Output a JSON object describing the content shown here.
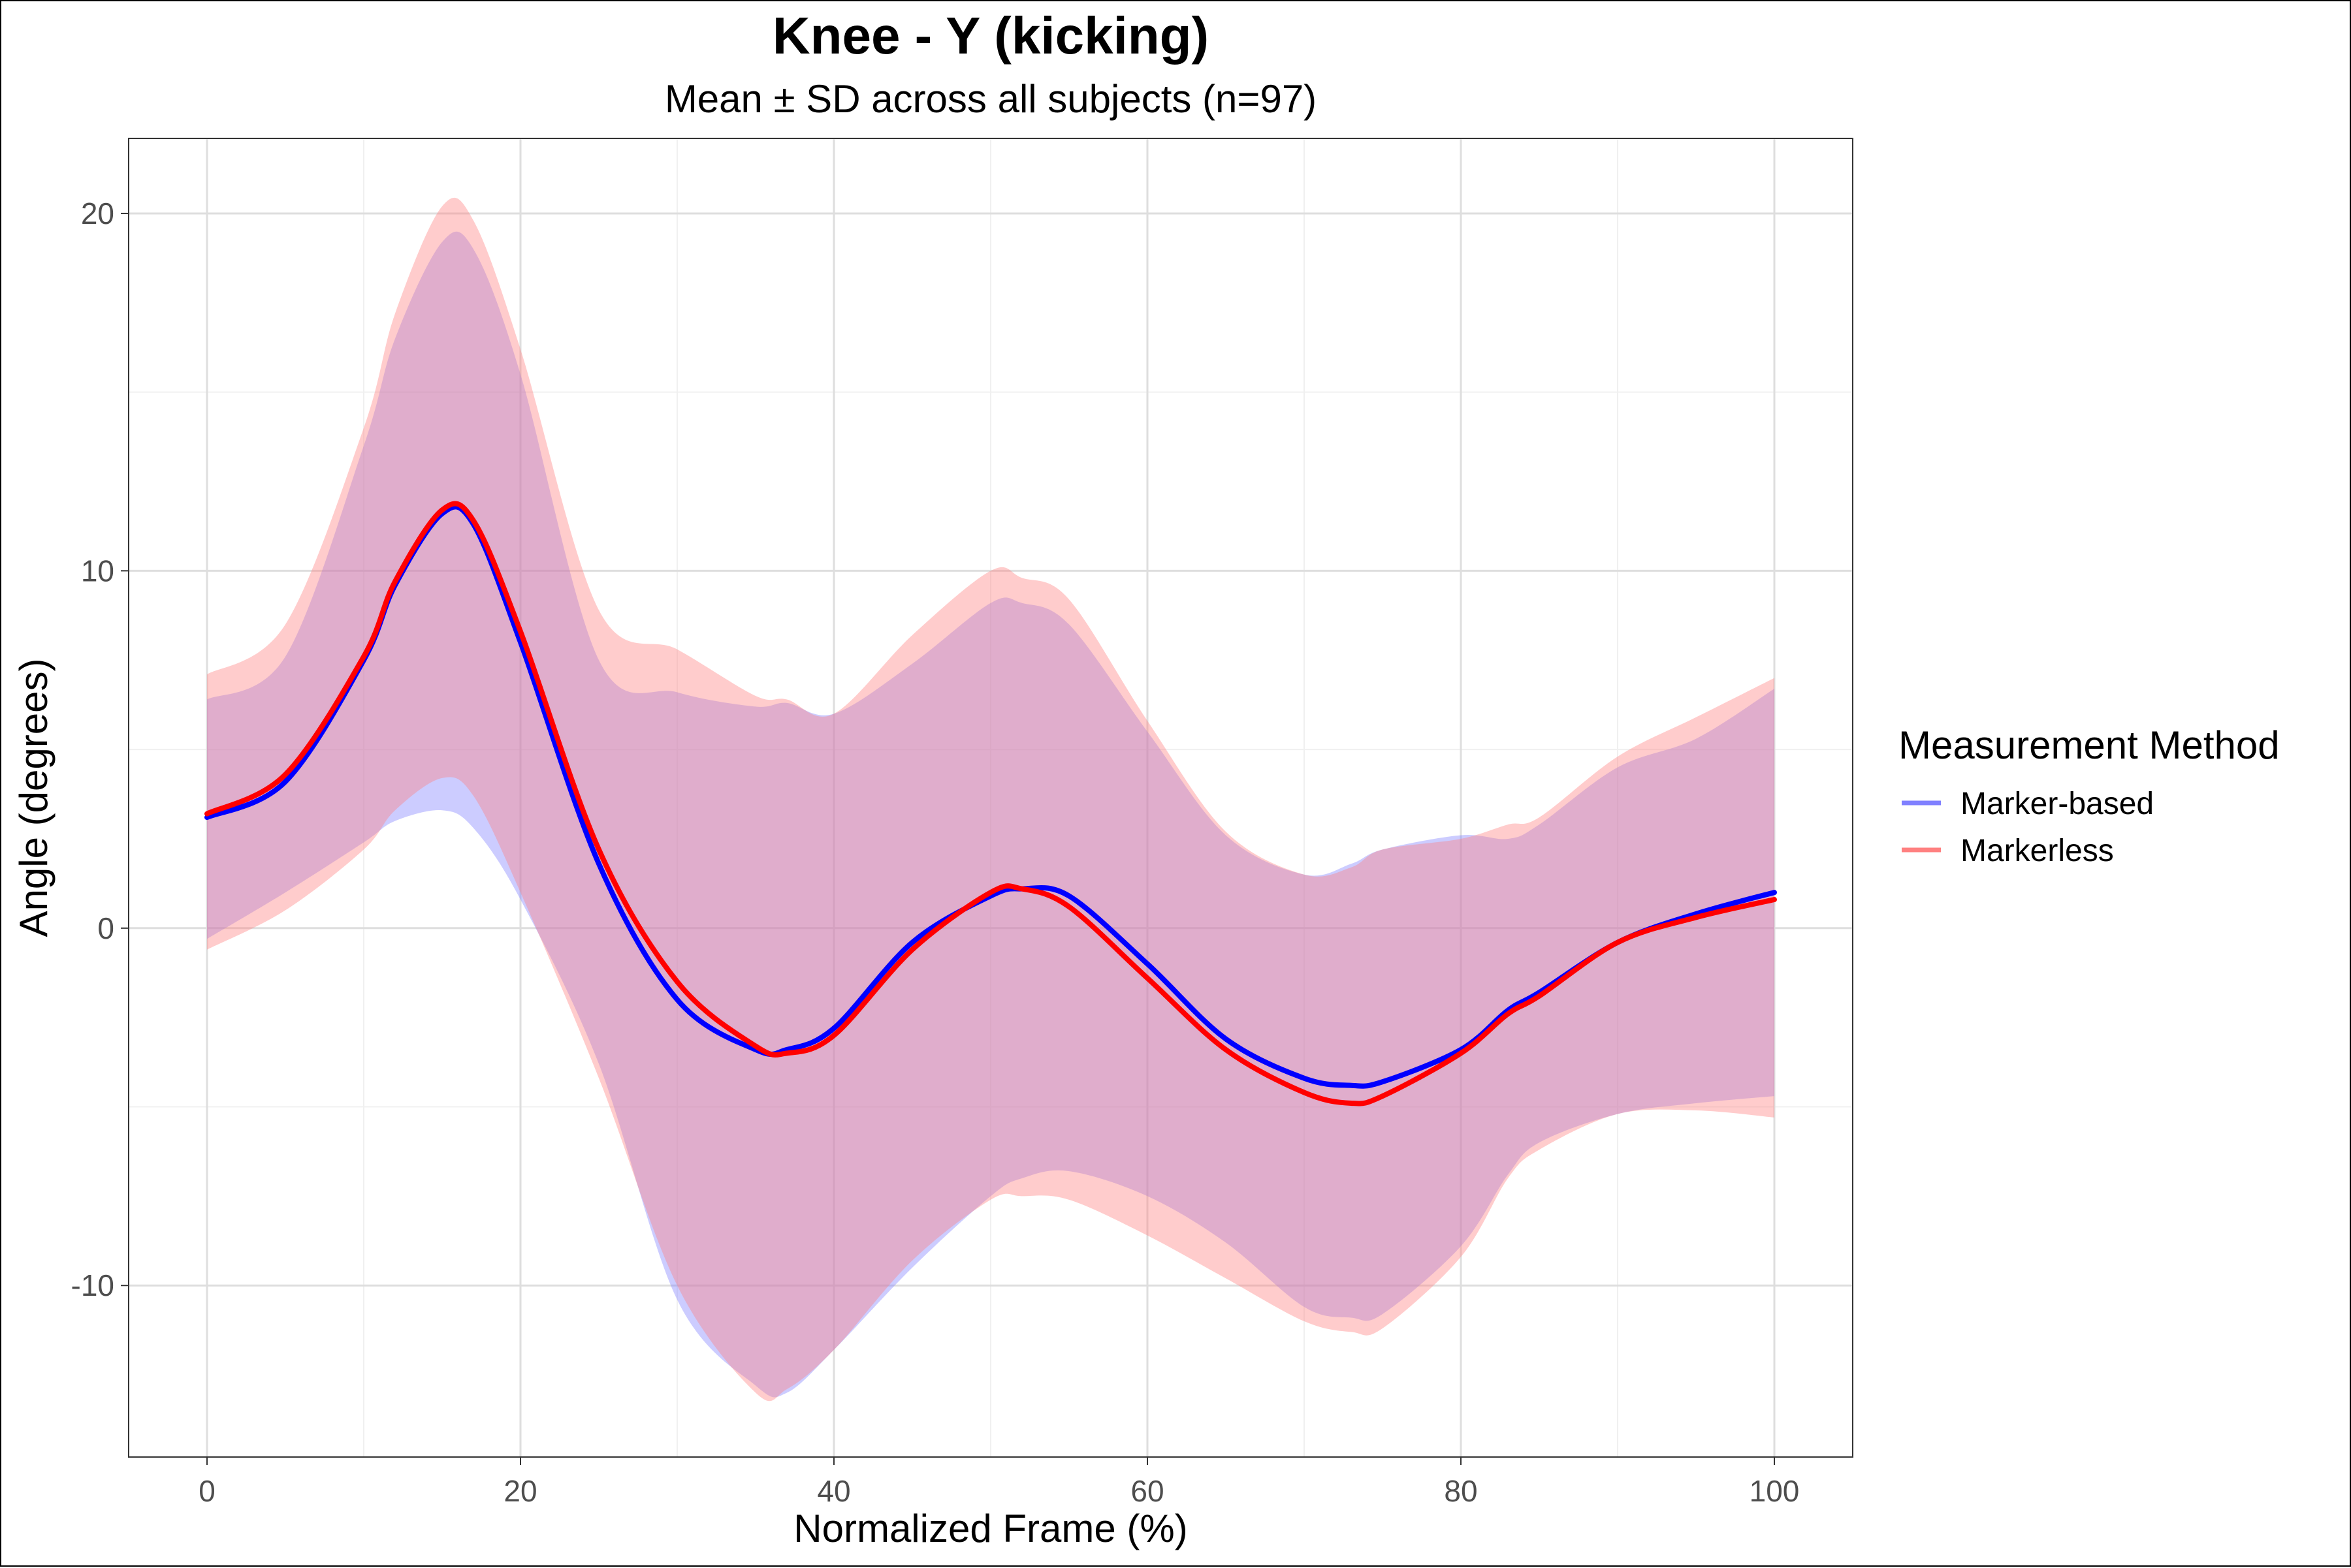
{
  "chart_data": {
    "type": "line",
    "title": "Knee - Y (kicking)",
    "subtitle": "Mean ± SD across all subjects (n=97)",
    "xlabel": "Normalized Frame (%)",
    "ylabel": "Angle (degrees)",
    "xlim": [
      -5,
      105
    ],
    "ylim": [
      -14.8,
      22.1
    ],
    "x_ticks": [
      0,
      20,
      40,
      60,
      80,
      100
    ],
    "x_tick_labels": [
      "0",
      "20",
      "40",
      "60",
      "80",
      "100"
    ],
    "y_ticks": [
      20,
      10,
      0,
      -10
    ],
    "y_tick_labels": [
      "20",
      "10",
      "0",
      "-10"
    ],
    "grid": true,
    "legend": {
      "title": "Measurement Method",
      "position": "right"
    },
    "x": [
      0,
      5,
      10,
      12,
      15,
      17,
      20,
      25,
      30,
      35,
      37,
      40,
      45,
      50,
      52,
      55,
      60,
      65,
      70,
      73,
      75,
      80,
      83,
      85,
      90,
      95,
      100
    ],
    "series": [
      {
        "name": "Marker-based",
        "color": "#0000ff",
        "band_color": "#8080ff",
        "mean": [
          3.1,
          4.1,
          7.5,
          9.6,
          11.6,
          11.3,
          8.0,
          1.8,
          -2.0,
          -3.4,
          -3.4,
          -2.8,
          -0.4,
          0.9,
          1.1,
          0.9,
          -1.0,
          -3.1,
          -4.2,
          -4.4,
          -4.3,
          -3.4,
          -2.3,
          -1.8,
          -0.4,
          0.4,
          1.0
        ],
        "upper": [
          6.4,
          7.6,
          13.5,
          16.5,
          19.2,
          19.0,
          15.5,
          7.5,
          6.6,
          6.2,
          6.3,
          6.0,
          7.4,
          9.1,
          9.1,
          8.5,
          5.5,
          2.6,
          1.5,
          1.8,
          2.2,
          2.6,
          2.5,
          2.9,
          4.5,
          5.3,
          6.7
        ],
        "lower": [
          -0.3,
          1.0,
          2.4,
          3.0,
          3.3,
          2.8,
          0.8,
          -3.8,
          -10.4,
          -12.8,
          -13.0,
          -11.8,
          -9.5,
          -7.5,
          -7.0,
          -6.8,
          -7.5,
          -8.8,
          -10.6,
          -10.9,
          -10.8,
          -8.9,
          -6.9,
          -6.0,
          -5.2,
          -4.9,
          -4.7
        ]
      },
      {
        "name": "Markerless",
        "color": "#ff0000",
        "band_color": "#ff8080",
        "mean": [
          3.2,
          4.3,
          7.6,
          9.7,
          11.7,
          11.4,
          8.3,
          2.2,
          -1.5,
          -3.3,
          -3.5,
          -3.0,
          -0.6,
          1.0,
          1.1,
          0.6,
          -1.4,
          -3.4,
          -4.6,
          -4.9,
          -4.7,
          -3.5,
          -2.4,
          -1.9,
          -0.4,
          0.3,
          0.8
        ],
        "upper": [
          7.1,
          8.5,
          14.0,
          17.2,
          20.2,
          19.8,
          16.2,
          8.9,
          7.8,
          6.5,
          6.4,
          6.0,
          8.2,
          10.0,
          9.8,
          9.2,
          5.8,
          2.7,
          1.5,
          1.7,
          2.2,
          2.5,
          2.9,
          3.1,
          4.8,
          5.9,
          7.0
        ],
        "lower": [
          -0.6,
          0.5,
          2.2,
          3.3,
          4.2,
          3.7,
          1.0,
          -4.2,
          -10.0,
          -13.0,
          -12.9,
          -11.8,
          -9.3,
          -7.6,
          -7.5,
          -7.6,
          -8.6,
          -9.8,
          -11.0,
          -11.3,
          -11.2,
          -9.2,
          -7.0,
          -6.2,
          -5.2,
          -5.1,
          -5.3
        ]
      }
    ]
  }
}
